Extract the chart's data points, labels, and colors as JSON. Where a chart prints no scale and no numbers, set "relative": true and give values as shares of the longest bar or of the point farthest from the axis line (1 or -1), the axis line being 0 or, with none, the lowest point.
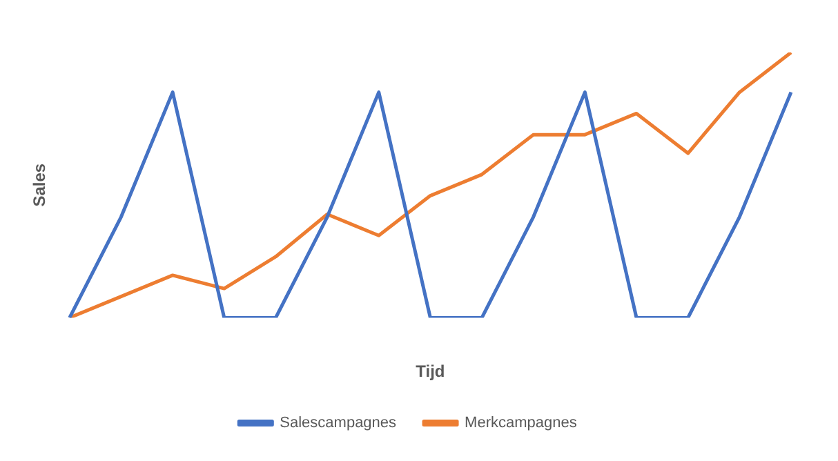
{
  "chart_data": {
    "type": "line",
    "xlabel": "Tijd",
    "ylabel": "Sales",
    "relative": true,
    "legend": "bottom",
    "marker": "none",
    "line_style": "solid",
    "categories": [
      null,
      null,
      null,
      null,
      null,
      null,
      null,
      null,
      null,
      null,
      null,
      null,
      null,
      null,
      null
    ],
    "series": [
      {
        "name": "Salescampagnes",
        "color": "#4472c4",
        "values": [
          0,
          0.38,
          0.85,
          0,
          0,
          0.38,
          0.85,
          0,
          0,
          0.38,
          0.85,
          0,
          0,
          0.38,
          0.85
        ]
      },
      {
        "name": "Merkcampagnes",
        "color": "#ed7d31",
        "values": [
          0,
          0.08,
          0.16,
          0.11,
          0.23,
          0.39,
          0.31,
          0.46,
          0.54,
          0.69,
          0.69,
          0.77,
          0.62,
          0.85,
          1
        ]
      }
    ]
  }
}
